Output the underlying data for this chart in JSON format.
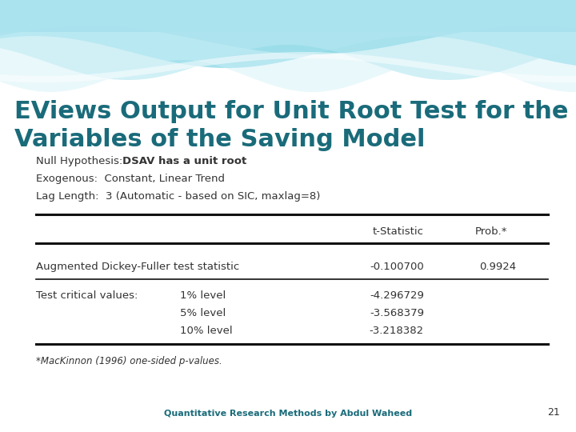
{
  "title_line1": "EViews Output for Unit Root Test for the",
  "title_line2": "Variables of the Saving Model",
  "title_color": "#1a6b7a",
  "title_fontsize": 22,
  "bg_color": "#ffffff",
  "null_hyp_normal": "Null Hypothesis: ",
  "null_hyp_bold": "DSAV has a unit root",
  "exogenous": "Exogenous:  Constant, Linear Trend",
  "lag_length": "Lag Length:  3 (Automatic - based on SIC, maxlag=8)",
  "col_header1": "t-Statistic",
  "col_header2": "Prob.*",
  "row1_label": "Augmented Dickey-Fuller test statistic",
  "row1_val1": "-0.100700",
  "row1_val2": "0.9924",
  "row2_label1": "Test critical values:",
  "row2_label2": "1% level",
  "row2_val1": "-4.296729",
  "row3_label": "5% level",
  "row3_val1": "-3.568379",
  "row4_label": "10% level",
  "row4_val1": "-3.218382",
  "footnote": "*MacKinnon (1996) one-sided p-values.",
  "footer_text": "Quantitative Research Methods by Abdul Waheed",
  "footer_page": "21",
  "footer_color": "#1a6b7a",
  "text_color": "#333333",
  "line_color": "#111111",
  "wave_colors": [
    "#4cc4d4",
    "#7dd8e8",
    "#a8e4ef",
    "#caf0f8",
    "#e8f8fc"
  ],
  "wave_top_color": "#2ab0c8"
}
